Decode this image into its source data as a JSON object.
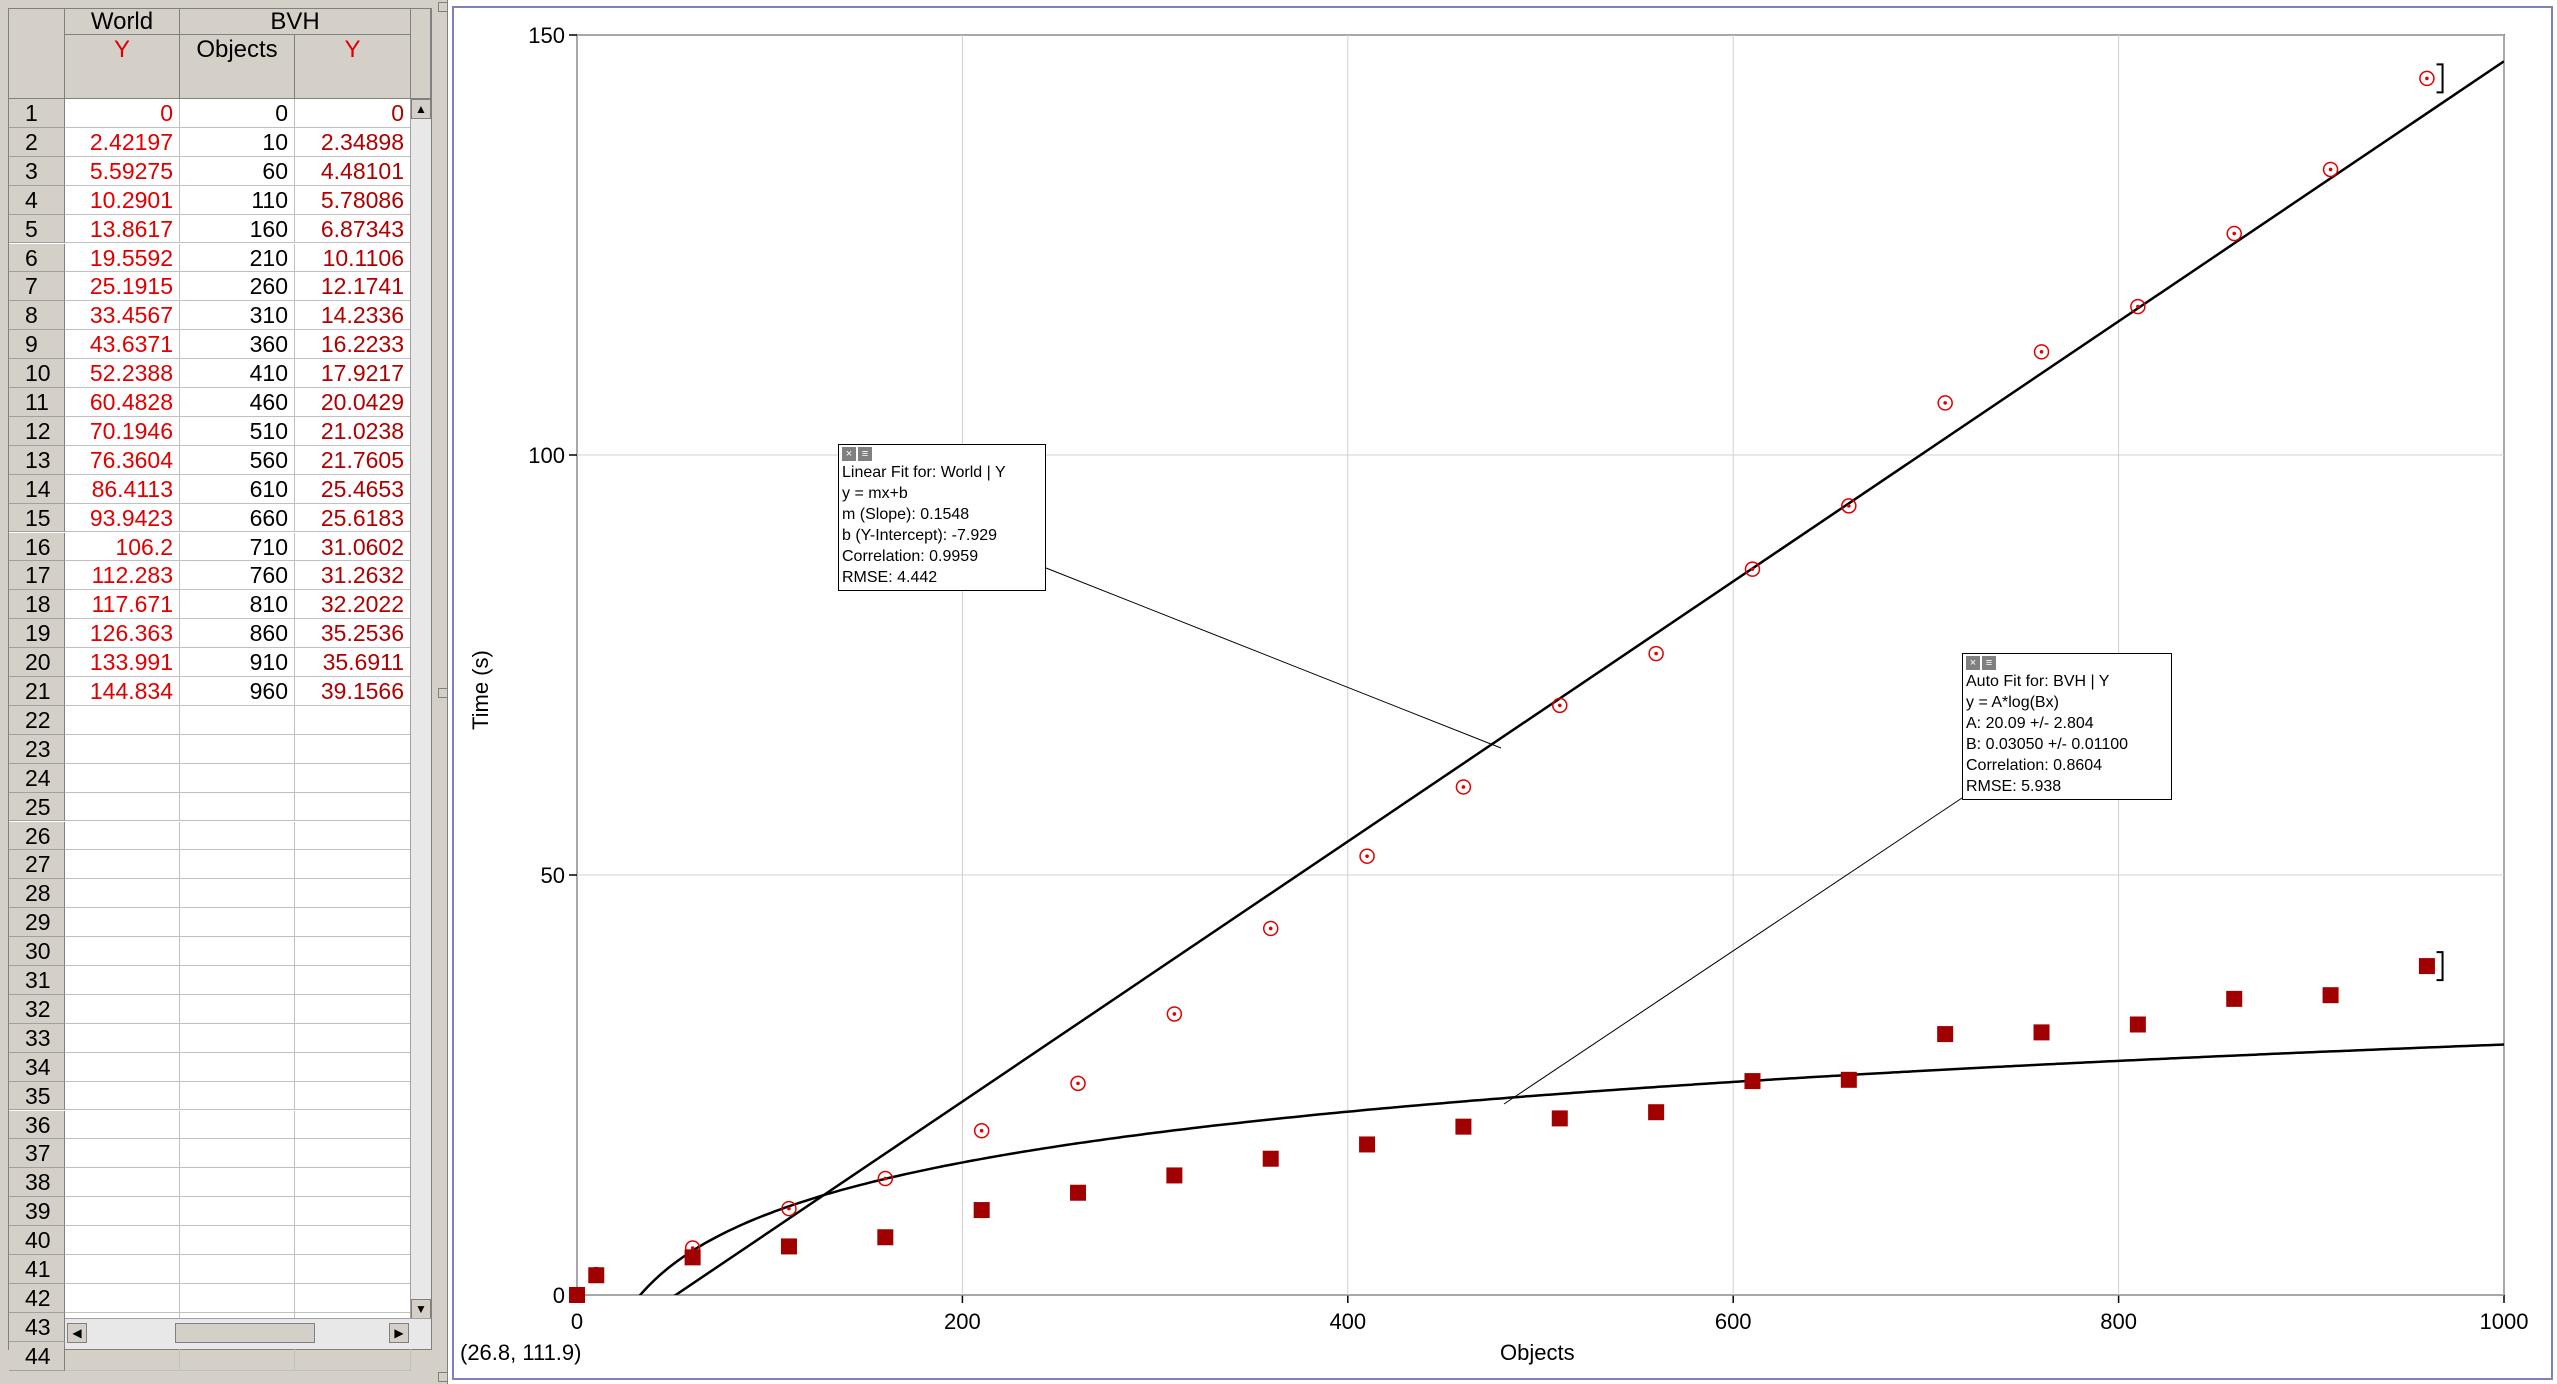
{
  "table": {
    "header_group_1": "World",
    "header_group_2": "BVH",
    "col_1": "Y",
    "col_2": "Objects",
    "col_3": "Y",
    "rows": [
      {
        "n": "1",
        "world_y": "0",
        "objects": "0",
        "bvh_y": "0"
      },
      {
        "n": "2",
        "world_y": "2.42197",
        "objects": "10",
        "bvh_y": "2.34898"
      },
      {
        "n": "3",
        "world_y": "5.59275",
        "objects": "60",
        "bvh_y": "4.48101"
      },
      {
        "n": "4",
        "world_y": "10.2901",
        "objects": "110",
        "bvh_y": "5.78086"
      },
      {
        "n": "5",
        "world_y": "13.8617",
        "objects": "160",
        "bvh_y": "6.87343"
      },
      {
        "n": "6",
        "world_y": "19.5592",
        "objects": "210",
        "bvh_y": "10.1106"
      },
      {
        "n": "7",
        "world_y": "25.1915",
        "objects": "260",
        "bvh_y": "12.1741"
      },
      {
        "n": "8",
        "world_y": "33.4567",
        "objects": "310",
        "bvh_y": "14.2336"
      },
      {
        "n": "9",
        "world_y": "43.6371",
        "objects": "360",
        "bvh_y": "16.2233"
      },
      {
        "n": "10",
        "world_y": "52.2388",
        "objects": "410",
        "bvh_y": "17.9217"
      },
      {
        "n": "11",
        "world_y": "60.4828",
        "objects": "460",
        "bvh_y": "20.0429"
      },
      {
        "n": "12",
        "world_y": "70.1946",
        "objects": "510",
        "bvh_y": "21.0238"
      },
      {
        "n": "13",
        "world_y": "76.3604",
        "objects": "560",
        "bvh_y": "21.7605"
      },
      {
        "n": "14",
        "world_y": "86.4113",
        "objects": "610",
        "bvh_y": "25.4653"
      },
      {
        "n": "15",
        "world_y": "93.9423",
        "objects": "660",
        "bvh_y": "25.6183"
      },
      {
        "n": "16",
        "world_y": "106.2",
        "objects": "710",
        "bvh_y": "31.0602"
      },
      {
        "n": "17",
        "world_y": "112.283",
        "objects": "760",
        "bvh_y": "31.2632"
      },
      {
        "n": "18",
        "world_y": "117.671",
        "objects": "810",
        "bvh_y": "32.2022"
      },
      {
        "n": "19",
        "world_y": "126.363",
        "objects": "860",
        "bvh_y": "35.2536"
      },
      {
        "n": "20",
        "world_y": "133.991",
        "objects": "910",
        "bvh_y": "35.6911"
      },
      {
        "n": "21",
        "world_y": "144.834",
        "objects": "960",
        "bvh_y": "39.1566"
      },
      {
        "n": "22",
        "world_y": "",
        "objects": "",
        "bvh_y": ""
      },
      {
        "n": "23",
        "world_y": "",
        "objects": "",
        "bvh_y": ""
      },
      {
        "n": "24",
        "world_y": "",
        "objects": "",
        "bvh_y": ""
      },
      {
        "n": "25",
        "world_y": "",
        "objects": "",
        "bvh_y": ""
      },
      {
        "n": "26",
        "world_y": "",
        "objects": "",
        "bvh_y": ""
      },
      {
        "n": "27",
        "world_y": "",
        "objects": "",
        "bvh_y": ""
      },
      {
        "n": "28",
        "world_y": "",
        "objects": "",
        "bvh_y": ""
      },
      {
        "n": "29",
        "world_y": "",
        "objects": "",
        "bvh_y": ""
      },
      {
        "n": "30",
        "world_y": "",
        "objects": "",
        "bvh_y": ""
      },
      {
        "n": "31",
        "world_y": "",
        "objects": "",
        "bvh_y": ""
      },
      {
        "n": "32",
        "world_y": "",
        "objects": "",
        "bvh_y": ""
      },
      {
        "n": "33",
        "world_y": "",
        "objects": "",
        "bvh_y": ""
      },
      {
        "n": "34",
        "world_y": "",
        "objects": "",
        "bvh_y": ""
      },
      {
        "n": "35",
        "world_y": "",
        "objects": "",
        "bvh_y": ""
      },
      {
        "n": "36",
        "world_y": "",
        "objects": "",
        "bvh_y": ""
      },
      {
        "n": "37",
        "world_y": "",
        "objects": "",
        "bvh_y": ""
      },
      {
        "n": "38",
        "world_y": "",
        "objects": "",
        "bvh_y": ""
      },
      {
        "n": "39",
        "world_y": "",
        "objects": "",
        "bvh_y": ""
      },
      {
        "n": "40",
        "world_y": "",
        "objects": "",
        "bvh_y": ""
      },
      {
        "n": "41",
        "world_y": "",
        "objects": "",
        "bvh_y": ""
      },
      {
        "n": "42",
        "world_y": "",
        "objects": "",
        "bvh_y": ""
      },
      {
        "n": "43",
        "world_y": "",
        "objects": "",
        "bvh_y": ""
      },
      {
        "n": "44",
        "world_y": "",
        "objects": "",
        "bvh_y": ""
      }
    ]
  },
  "graph": {
    "ylabel": "Time (s)",
    "xlabel": "Objects",
    "readout": "(26.8, 111.9)",
    "linear_fit": {
      "lines": [
        "Linear Fit for: World | Y",
        "y = mx+b",
        "m (Slope): 0.1548",
        "b (Y-Intercept): -7.929",
        "Correlation: 0.9959",
        "RMSE: 4.442"
      ]
    },
    "auto_fit": {
      "lines": [
        "Auto Fit for: BVH | Y",
        "y = A*log(Bx)",
        "A: 20.09 +/- 2.804",
        "B: 0.03050 +/- 0.01100",
        "Correlation: 0.8604",
        "RMSE: 5.938"
      ]
    },
    "colors": {
      "world": "#e00000",
      "bvh": "#a00000",
      "fit": "#000000",
      "grid": "#d0d0d0",
      "frame": "#8080c0"
    }
  },
  "chart_data": {
    "type": "scatter",
    "xlabel": "Objects",
    "ylabel": "Time (s)",
    "xlim": [
      0,
      1000
    ],
    "ylim": [
      0,
      150
    ],
    "x_ticks": [
      "0",
      "200",
      "400",
      "600",
      "800",
      "1000"
    ],
    "y_ticks": [
      "0",
      "50",
      "100",
      "150"
    ],
    "grid": true,
    "x": [
      0,
      10,
      60,
      110,
      160,
      210,
      260,
      310,
      360,
      410,
      460,
      510,
      560,
      610,
      660,
      710,
      760,
      810,
      860,
      910,
      960
    ],
    "series": [
      {
        "name": "World | Y",
        "marker": "circle",
        "values": [
          0,
          2.42197,
          5.59275,
          10.2901,
          13.8617,
          19.5592,
          25.1915,
          33.4567,
          43.6371,
          52.2388,
          60.4828,
          70.1946,
          76.3604,
          86.4113,
          93.9423,
          106.2,
          112.283,
          117.671,
          126.363,
          133.991,
          144.834
        ]
      },
      {
        "name": "BVH | Y",
        "marker": "square",
        "values": [
          0,
          2.34898,
          4.48101,
          5.78086,
          6.87343,
          10.1106,
          12.1741,
          14.2336,
          16.2233,
          17.9217,
          20.0429,
          21.0238,
          21.7605,
          25.4653,
          25.6183,
          31.0602,
          31.2632,
          32.2022,
          35.2536,
          35.6911,
          39.1566
        ]
      }
    ],
    "fits": [
      {
        "series": "World | Y",
        "model": "y = mx+b",
        "m": 0.1548,
        "b": -7.929
      },
      {
        "series": "BVH | Y",
        "model": "y = A*log(Bx)",
        "A": 20.09,
        "B": 0.0305
      }
    ]
  }
}
